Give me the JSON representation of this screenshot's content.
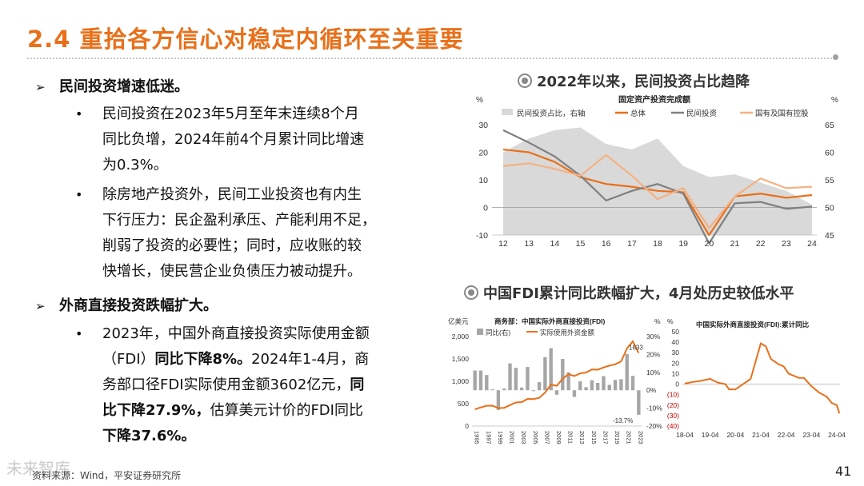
{
  "header": {
    "title": "2.4 重拾各方信心对稳定内循环至关重要"
  },
  "left": {
    "point1": {
      "arrow": "➢",
      "heading": "民间投资增速低迷。",
      "items": [
        {
          "bullet": "•",
          "lines": [
            "民间投资在2023年5月至年末连续8个月",
            "同比负增，2024年前4个月累计同比增速",
            "为0.3%。"
          ]
        },
        {
          "bullet": "•",
          "lines": [
            "除房地产投资外，民间工业投资也有内生",
            "下行压力：民企盈利承压、产能利用不足，",
            "削弱了投资的必要性；同时，应收账的较",
            "快增长，使民营企业负债压力被动提升。"
          ]
        }
      ]
    },
    "point2": {
      "arrow": "➢",
      "heading": "外商直接投资跌幅扩大。",
      "item": {
        "bullet": "•",
        "line1": "2023年，中国外商直接投资实际使用金额",
        "line2a": "（FDI）",
        "line2b": "同比下降8%。",
        "line2c": "2024年1-4月，商",
        "line3": "务部口径FDI实际使用金额3602亿元，",
        "line3b": "同",
        "line4a": "比下降27.9%，",
        "line4b": "估算美元计价的FDI同比",
        "line5": "下降37.6%。"
      }
    }
  },
  "right": {
    "section1_title": "2022年以来，民间投资占比趋降",
    "section2_title": "中国FDI累计同比跌幅扩大，4月处历史较低水平"
  },
  "chart_data": [
    {
      "type": "line",
      "title": "固定资产投资完成额",
      "ylabel_left": "%",
      "ylabel_right": "%",
      "ylim_left": [
        -10,
        30
      ],
      "ylim_right": [
        45,
        65
      ],
      "yticks_left": [
        "30",
        "20",
        "10",
        "0",
        "-10"
      ],
      "yticks_right": [
        "65",
        "60",
        "55",
        "50",
        "45"
      ],
      "x": [
        "12",
        "13",
        "14",
        "15",
        "16",
        "17",
        "18",
        "19",
        "20",
        "21",
        "22",
        "23",
        "24"
      ],
      "legend_position": "top",
      "series": [
        {
          "name": "民间投资占比，右轴",
          "kind": "area",
          "axis": "right",
          "color": "#d9d9d9",
          "values": [
            60.0,
            62.5,
            64.0,
            64.5,
            61.5,
            60.5,
            62.5,
            57.5,
            55.5,
            56.0,
            54.5,
            53.0,
            50.5
          ]
        },
        {
          "name": "总体",
          "kind": "line",
          "axis": "left",
          "color": "#e8701a",
          "values": [
            21.0,
            20.0,
            16.5,
            11.0,
            8.5,
            7.5,
            6.0,
            5.5,
            -10.0,
            4.0,
            5.0,
            3.5,
            4.5
          ]
        },
        {
          "name": "民间投资",
          "kind": "line",
          "axis": "left",
          "color": "#7f7f7f",
          "values": [
            28.0,
            23.5,
            18.5,
            11.5,
            2.5,
            6.0,
            8.5,
            5.0,
            -13.0,
            1.5,
            2.0,
            -0.5,
            0.3
          ]
        },
        {
          "name": "国有及国有控股",
          "kind": "line",
          "axis": "left",
          "color": "#f4b183",
          "values": [
            15.0,
            16.0,
            14.0,
            11.5,
            19.0,
            11.5,
            3.0,
            7.0,
            -7.5,
            4.0,
            10.5,
            7.0,
            7.5
          ]
        }
      ]
    },
    {
      "type": "bar",
      "title": "商务部：中国实际外商直接投资(FDI)",
      "ylabel_left": "亿美元",
      "ylabel_right": "%",
      "ylim_left": [
        0,
        2000
      ],
      "ylim_right": [
        -20,
        30
      ],
      "yticks_left": [
        "2,000",
        "1,500",
        "1,000",
        "500",
        "0"
      ],
      "yticks_right": [
        "30%",
        "20%",
        "10%",
        "0%",
        "-10%",
        "-20%"
      ],
      "x": [
        "1995",
        "1996",
        "1997",
        "1998",
        "1999",
        "2000",
        "2001",
        "2002",
        "2003",
        "2004",
        "2005",
        "2006",
        "2007",
        "2008",
        "2009",
        "2010",
        "2011",
        "2012",
        "2013",
        "2014",
        "2015",
        "2016",
        "2017",
        "2018",
        "2019",
        "2020",
        "2021",
        "2022",
        "2023"
      ],
      "x_tick_labels": [
        "1995",
        "1997",
        "1999",
        "2001",
        "2003",
        "2005",
        "2007",
        "2009",
        "2011",
        "2013",
        "2015",
        "2017",
        "2019",
        "2021",
        "2023"
      ],
      "legend_position": "top-left",
      "annotations": [
        "1633",
        "-13.7%"
      ],
      "series": [
        {
          "name": "同比(右)",
          "kind": "bar",
          "axis": "right",
          "color": "#a6a6a6",
          "values": [
            11,
            11,
            8.5,
            0.5,
            -11,
            1,
            15,
            12.5,
            1.5,
            13,
            -0.5,
            4.5,
            18.5,
            23.5,
            -2.5,
            17.5,
            10,
            -3.7,
            5,
            1.7,
            5.6,
            4.1,
            7.9,
            3,
            5.8,
            6.2,
            20.2,
            8,
            -13.7
          ]
        },
        {
          "name": "实际使用外资金额",
          "kind": "line",
          "axis": "left",
          "color": "#e8701a",
          "values": [
            375,
            417,
            453,
            455,
            403,
            407,
            468,
            527,
            535,
            606,
            603,
            630,
            748,
            924,
            900,
            1057,
            1160,
            1117,
            1176,
            1196,
            1263,
            1260,
            1310,
            1350,
            1381,
            1443,
            1735,
            1891,
            1633
          ]
        }
      ]
    },
    {
      "type": "line",
      "title": "中国实际外商直接投资(FDI):累计同比",
      "ylabel": "%",
      "ylim": [
        -40,
        50
      ],
      "yticks": [
        "50",
        "40",
        "30",
        "20",
        "10",
        "0",
        "(10)",
        "(20)",
        "(30)",
        "(40)"
      ],
      "x": [
        "18-04",
        "19-04",
        "20-04",
        "21-04",
        "22-04",
        "23-04",
        "24-04"
      ],
      "series": [
        {
          "name": "累计同比",
          "kind": "line",
          "color": "#e8701a",
          "points": [
            [
              0,
              0.5
            ],
            [
              0.3,
              2
            ],
            [
              0.6,
              3
            ],
            [
              1,
              5
            ],
            [
              1.3,
              1.5
            ],
            [
              1.6,
              0
            ],
            [
              1.75,
              -5
            ],
            [
              2,
              -5
            ],
            [
              2.3,
              0
            ],
            [
              2.6,
              5
            ],
            [
              3,
              39
            ],
            [
              3.2,
              36
            ],
            [
              3.4,
              24
            ],
            [
              3.7,
              19
            ],
            [
              3.9,
              17
            ],
            [
              4.1,
              10
            ],
            [
              4.3,
              8
            ],
            [
              4.5,
              6
            ],
            [
              4.7,
              6
            ],
            [
              5,
              -2
            ],
            [
              5.3,
              -8
            ],
            [
              5.6,
              -12
            ],
            [
              5.8,
              -18
            ],
            [
              6,
              -20
            ],
            [
              6.1,
              -27.9
            ]
          ]
        }
      ]
    }
  ],
  "footer": {
    "source": "资料来源：Wind，平安证券研究所",
    "page_number": "41",
    "watermark": "未来智库"
  }
}
